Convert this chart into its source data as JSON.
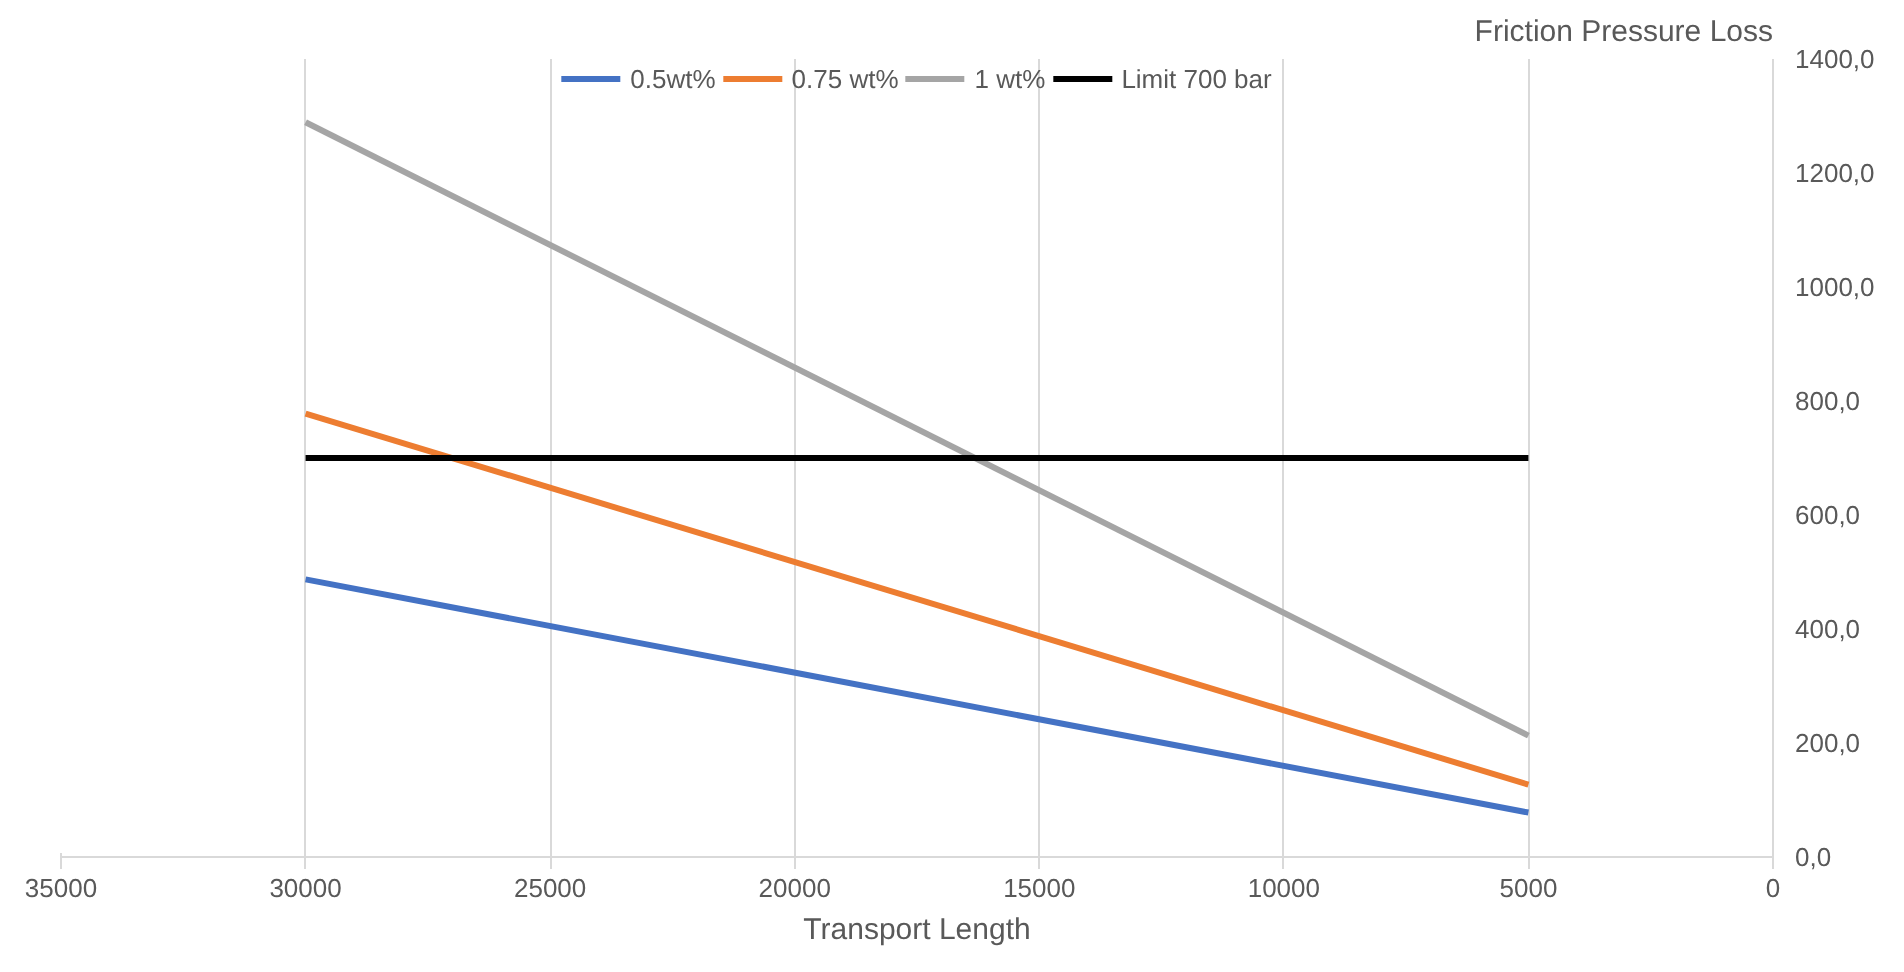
{
  "chart_data": {
    "type": "line",
    "xlabel": "Transport Length",
    "ylabel": "Friction Pressure Loss",
    "x": [
      30000,
      5000
    ],
    "series": [
      {
        "name": "0.5wt%",
        "color": "#4472c4",
        "values": [
          487,
          78
        ]
      },
      {
        "name": "0.75 wt%",
        "color": "#ed7d31",
        "values": [
          778,
          127
        ]
      },
      {
        "name": "1 wt%",
        "color": "#a5a5a5",
        "values": [
          1289,
          213
        ]
      },
      {
        "name": "Limit 700 bar",
        "color": "#000000",
        "values": [
          700,
          700
        ]
      }
    ],
    "xlim": [
      35000,
      0
    ],
    "xticks": [
      35000,
      30000,
      25000,
      20000,
      15000,
      10000,
      5000,
      0
    ],
    "ylim": [
      0,
      1400
    ],
    "yticks": [
      {
        "value": 0,
        "label": "0,0"
      },
      {
        "value": 200,
        "label": "200,0"
      },
      {
        "value": 400,
        "label": "400,0"
      },
      {
        "value": 600,
        "label": "600,0"
      },
      {
        "value": 800,
        "label": "800,0"
      },
      {
        "value": 1000,
        "label": "1000,0"
      },
      {
        "value": 1200,
        "label": "1200,0"
      },
      {
        "value": 1400,
        "label": "1400,0"
      }
    ],
    "grid": "x",
    "legend": "top",
    "marker": "none",
    "line_style": "solid"
  }
}
